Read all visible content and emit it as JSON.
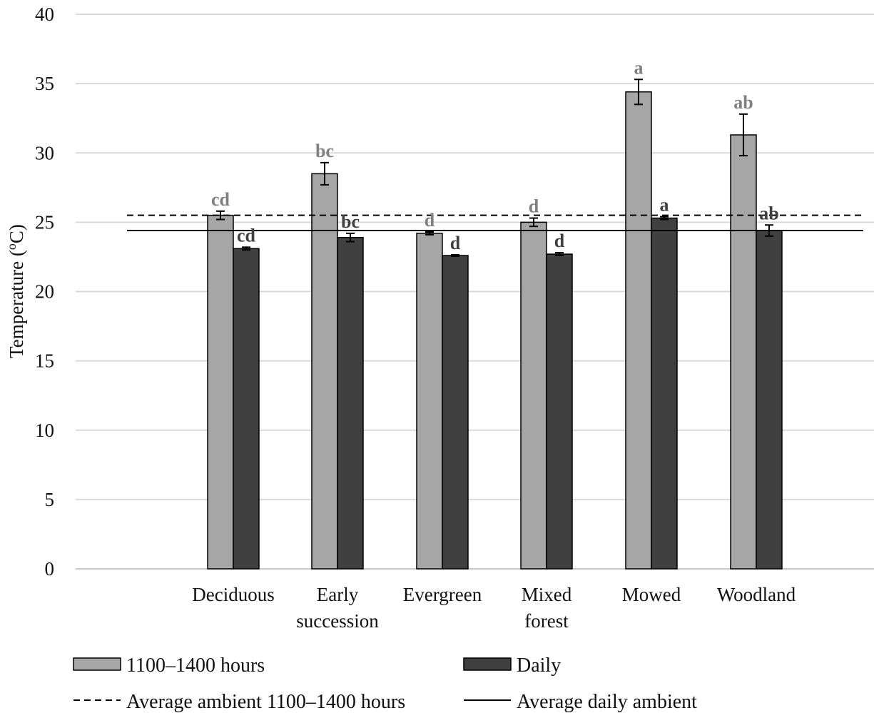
{
  "chart_data": {
    "type": "bar",
    "title": "",
    "xlabel": "",
    "ylabel": "Temperature (°C)",
    "ylabel_parts": {
      "prefix": "Temperature (",
      "superscript": "o",
      "suffix": "C)"
    },
    "ylim": [
      0,
      40
    ],
    "yticks": [
      0,
      5,
      10,
      15,
      20,
      25,
      30,
      35,
      40
    ],
    "grid": true,
    "legend_position": "bottom",
    "categories": [
      {
        "name": "Deciduous",
        "lines": [
          "Deciduous"
        ]
      },
      {
        "name": "Early succession",
        "lines": [
          "Early",
          "succession"
        ]
      },
      {
        "name": "Evergreen",
        "lines": [
          "Evergreen"
        ]
      },
      {
        "name": "Mixed forest",
        "lines": [
          "Mixed",
          "forest"
        ]
      },
      {
        "name": "Mowed",
        "lines": [
          "Mowed"
        ]
      },
      {
        "name": "Woodland",
        "lines": [
          "Woodland"
        ]
      }
    ],
    "series": [
      {
        "name": "1100–1400  hours",
        "color": "#a6a6a6",
        "values": [
          25.5,
          28.5,
          24.2,
          25.0,
          34.4,
          31.3
        ],
        "errors": [
          0.3,
          0.8,
          0.1,
          0.3,
          0.9,
          1.5
        ],
        "labels": [
          "cd",
          "bc",
          "d",
          "d",
          "a",
          "ab"
        ],
        "label_color": "#808080"
      },
      {
        "name": "Daily",
        "color": "#404040",
        "values": [
          23.1,
          23.9,
          22.6,
          22.7,
          25.3,
          24.4
        ],
        "errors": [
          0.1,
          0.3,
          0.05,
          0.1,
          0.1,
          0.4
        ],
        "labels": [
          "cd",
          "bc",
          "d",
          "d",
          "a",
          "ab"
        ],
        "label_color": "#404040"
      }
    ],
    "reference_lines": [
      {
        "name": "Average ambient 1100–1400  hours",
        "value": 25.5,
        "style": "dashed",
        "color": "#000000"
      },
      {
        "name": "Average daily ambient",
        "value": 24.4,
        "style": "solid",
        "color": "#000000"
      }
    ]
  }
}
